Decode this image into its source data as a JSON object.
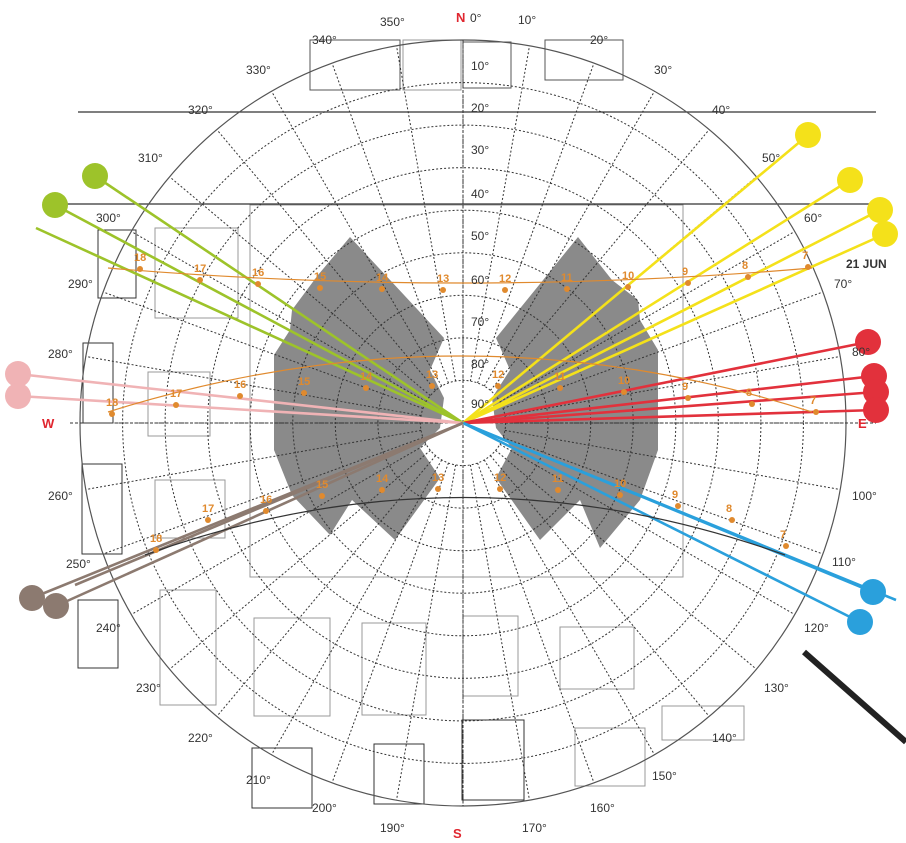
{
  "cardinals": {
    "north": "N",
    "south": "S",
    "east": "E",
    "west": "W"
  },
  "azimuth_labels": [
    "0°",
    "10°",
    "20°",
    "30°",
    "40°",
    "50°",
    "60°",
    "70°",
    "80°",
    "100°",
    "110°",
    "120°",
    "130°",
    "140°",
    "150°",
    "160°",
    "170°",
    "190°",
    "200°",
    "210°",
    "220°",
    "230°",
    "240°",
    "250°",
    "260°",
    "280°",
    "290°",
    "300°",
    "310°",
    "320°",
    "330°",
    "340°",
    "350°"
  ],
  "altitude_labels": [
    "10°",
    "20°",
    "30°",
    "40°",
    "50°",
    "60°",
    "70°",
    "80°",
    "90°"
  ],
  "date_label": "21 JUN",
  "sun_paths": [
    {
      "name": "jun",
      "hours": [
        "18",
        "17",
        "16",
        "15",
        "14",
        "13",
        "12",
        "11",
        "10",
        "9",
        "8",
        "7"
      ]
    },
    {
      "name": "equinox",
      "hours": [
        "18",
        "17",
        "16",
        "15",
        "14",
        "13",
        "12",
        "11",
        "10",
        "9",
        "8",
        "7"
      ]
    },
    {
      "name": "dec",
      "hours": [
        "18",
        "17",
        "16",
        "15",
        "14",
        "13",
        "12",
        "11",
        "10",
        "9",
        "8",
        "7"
      ]
    }
  ],
  "colors": {
    "obstruction": "#8a8a8a",
    "sun_path": "#e08a2e",
    "ray_yellow": "#f4e11a",
    "ray_red": "#e2313c",
    "ray_blue": "#2aa0dc",
    "ray_green": "#9dc32a",
    "ray_pink": "#f0b3b5",
    "ray_brown": "#8c7a70",
    "cardinal": "#e0262f"
  }
}
